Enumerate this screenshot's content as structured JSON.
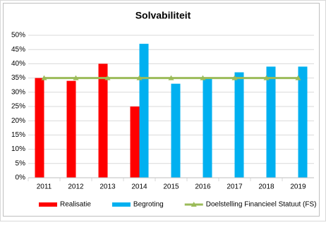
{
  "chart_data": {
    "type": "bar",
    "title": "Solvabiliteit",
    "categories": [
      "2011",
      "2012",
      "2013",
      "2014",
      "2015",
      "2016",
      "2017",
      "2018",
      "2019"
    ],
    "series": [
      {
        "name": "Realisatie",
        "color": "#ff0000",
        "type": "bar",
        "values": [
          35,
          34,
          40,
          25,
          null,
          null,
          null,
          null,
          null
        ]
      },
      {
        "name": "Begroting",
        "color": "#00b0f0",
        "type": "bar",
        "values": [
          null,
          null,
          null,
          47,
          33,
          35,
          37,
          39,
          39
        ]
      },
      {
        "name": "Doelstelling Financieel Statuut (FS)",
        "color": "#9bbb59",
        "type": "line",
        "values": [
          35,
          35,
          35,
          35,
          35,
          35,
          35,
          35,
          35
        ]
      }
    ],
    "ylim": [
      0,
      50
    ],
    "yticks": [
      {
        "value": 0,
        "label": "0%"
      },
      {
        "value": 5,
        "label": "5%"
      },
      {
        "value": 10,
        "label": "10%"
      },
      {
        "value": 15,
        "label": "15%"
      },
      {
        "value": 20,
        "label": "20%"
      },
      {
        "value": 25,
        "label": "25%"
      },
      {
        "value": 30,
        "label": "30%"
      },
      {
        "value": 35,
        "label": "35%"
      },
      {
        "value": 40,
        "label": "40%"
      },
      {
        "value": 45,
        "label": "45%"
      },
      {
        "value": 50,
        "label": "50%"
      }
    ],
    "grid": true,
    "legend": "bottom"
  }
}
